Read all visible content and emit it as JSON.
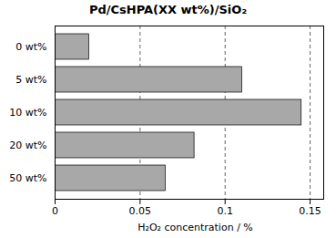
{
  "chart_data": {
    "type": "bar",
    "orientation": "horizontal",
    "title": "Pd/CsHPA(XX wt%)/SiO₂",
    "xlabel": "H₂O₂ concentration / %",
    "categories": [
      "0 wt%",
      "5 wt%",
      "10 wt%",
      "20 wt%",
      "50 wt%"
    ],
    "values": [
      0.02,
      0.11,
      0.145,
      0.082,
      0.065
    ],
    "color": "#a8a8a8",
    "xlim": [
      0,
      0.158
    ],
    "xticks": [
      0,
      0.05,
      0.1,
      0.15
    ],
    "grid": true
  }
}
